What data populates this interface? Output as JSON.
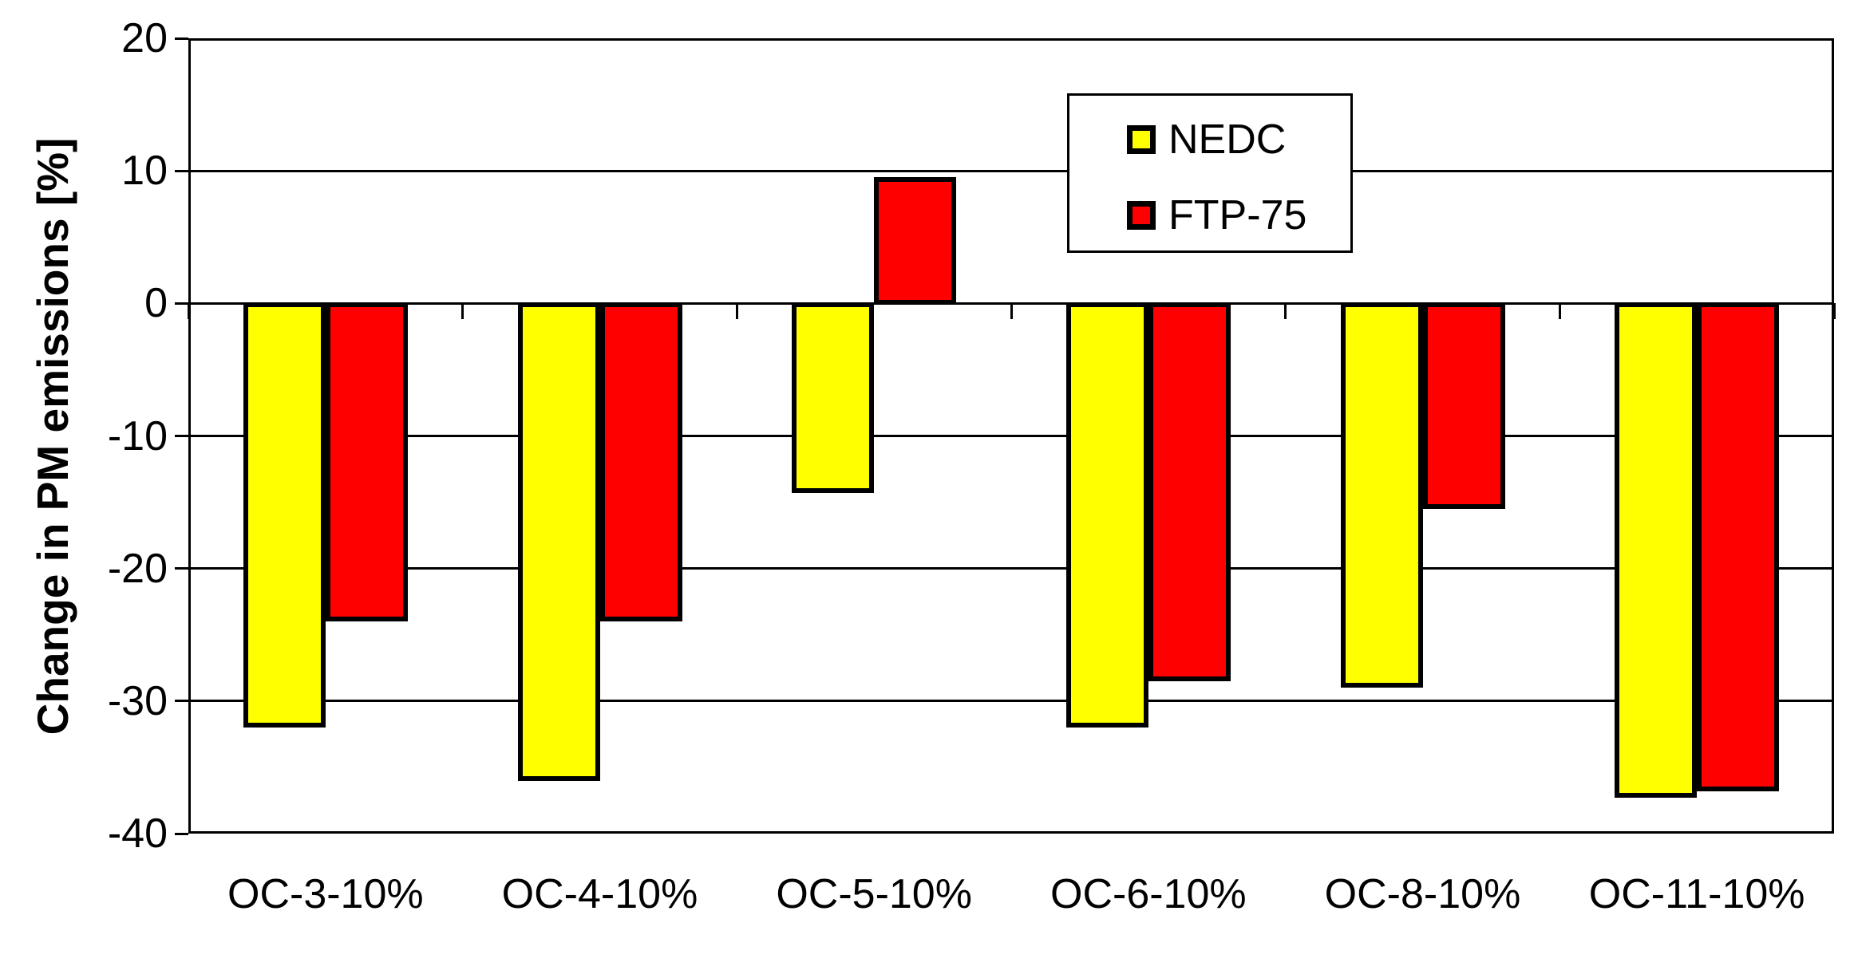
{
  "chart_data": {
    "type": "bar",
    "title": "",
    "xlabel": "",
    "ylabel": "Change in PM emissions [%]",
    "categories": [
      "OC-3-10%",
      "OC-4-10%",
      "OC-5-10%",
      "OC-6-10%",
      "OC-8-10%",
      "OC-11-10%"
    ],
    "series": [
      {
        "name": "NEDC",
        "color": "#FFFF00",
        "values": [
          -32,
          -36,
          -14.3,
          -32,
          -29,
          -37.3
        ]
      },
      {
        "name": "FTP-75",
        "color": "#FF0000",
        "values": [
          -24,
          -24,
          9.5,
          -28.5,
          -15.5,
          -36.8
        ]
      }
    ],
    "ylim": [
      -40,
      20
    ],
    "yticks": [
      20,
      10,
      0,
      -10,
      -20,
      -30,
      -40
    ],
    "grid": true,
    "grid_color": "#000000",
    "bar_outline_color": "#000000",
    "background_color": "#FFFFFF",
    "legend_position": "top-right-inside"
  }
}
